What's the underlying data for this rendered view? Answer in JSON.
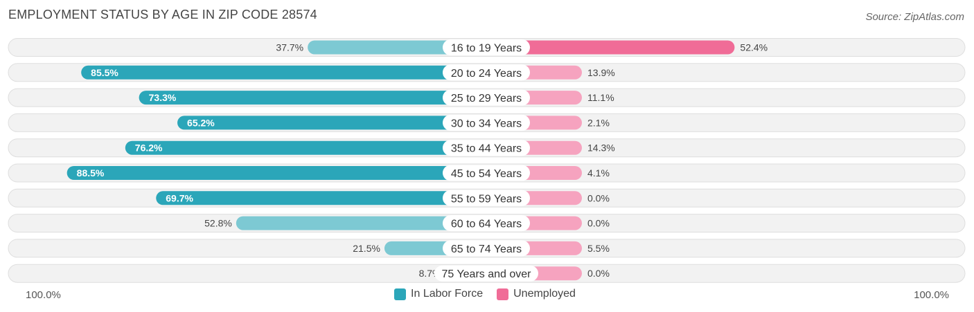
{
  "title": "EMPLOYMENT STATUS BY AGE IN ZIP CODE 28574",
  "source": "Source: ZipAtlas.com",
  "axis": {
    "left_label": "100.0%",
    "right_label": "100.0%"
  },
  "legend": {
    "labor_force": "In Labor Force",
    "unemployed": "Unemployed"
  },
  "colors": {
    "labor_force_strong": "#2BA6B9",
    "labor_force_light": "#7DC9D3",
    "unemployed_strong": "#F06C97",
    "unemployed_light": "#F6A3BF",
    "row_bg": "#F2F2F2",
    "row_border": "#DEDEDE"
  },
  "chart_data": {
    "type": "bar",
    "orientation": "horizontal-diverging",
    "title": "EMPLOYMENT STATUS BY AGE IN ZIP CODE 28574",
    "xlim": [
      -100,
      100
    ],
    "categories": [
      "16 to 19 Years",
      "20 to 24 Years",
      "25 to 29 Years",
      "30 to 34 Years",
      "35 to 44 Years",
      "45 to 54 Years",
      "55 to 59 Years",
      "60 to 64 Years",
      "65 to 74 Years",
      "75 Years and over"
    ],
    "series": [
      {
        "name": "In Labor Force",
        "values": [
          37.7,
          85.5,
          73.3,
          65.2,
          76.2,
          88.5,
          69.7,
          52.8,
          21.5,
          8.7
        ],
        "labels": [
          "37.7%",
          "85.5%",
          "73.3%",
          "65.2%",
          "76.2%",
          "88.5%",
          "69.7%",
          "52.8%",
          "21.5%",
          "8.7%"
        ]
      },
      {
        "name": "Unemployed",
        "values": [
          52.4,
          13.9,
          11.1,
          2.1,
          14.3,
          4.1,
          0.0,
          0.0,
          5.5,
          0.0
        ],
        "labels": [
          "52.4%",
          "13.9%",
          "11.1%",
          "2.1%",
          "14.3%",
          "4.1%",
          "0.0%",
          "0.0%",
          "5.5%",
          "0.0%"
        ]
      }
    ]
  }
}
